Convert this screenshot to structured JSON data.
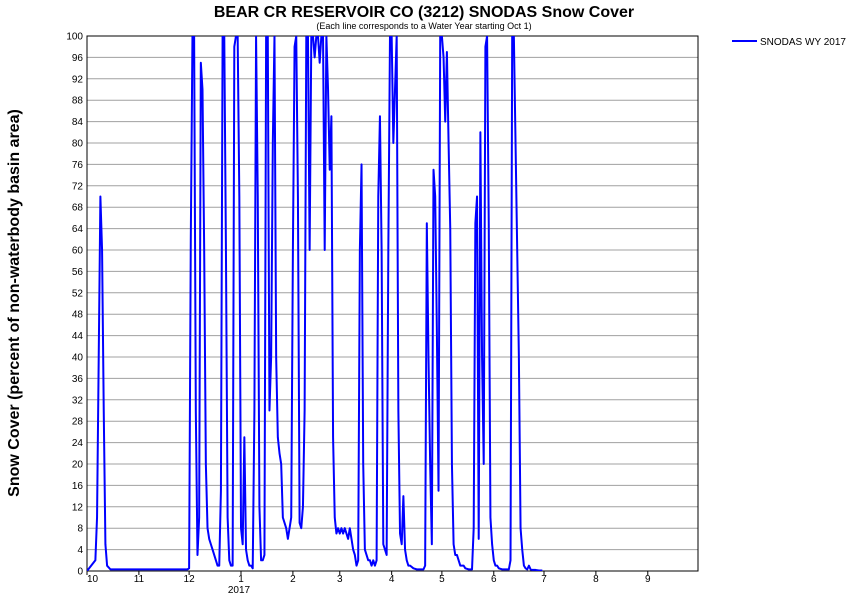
{
  "chart_data": {
    "type": "line",
    "title": "BEAR CR RESERVOIR CO (3212) SNODAS Snow Cover",
    "subtitle": "(Each line corresponds to a Water Year starting Oct 1)",
    "ylabel": "Snow Cover (percent of non-waterbody basin area)",
    "xlabel": "",
    "ylim": [
      0,
      100
    ],
    "y_ticks": [
      "0",
      "4",
      "8",
      "12",
      "16",
      "20",
      "24",
      "28",
      "32",
      "36",
      "40",
      "44",
      "48",
      "52",
      "56",
      "60",
      "64",
      "68",
      "72",
      "76",
      "80",
      "84",
      "88",
      "92",
      "96",
      "100"
    ],
    "x_ticks": [
      "10",
      "11",
      "12",
      "1",
      "2",
      "3",
      "4",
      "5",
      "6",
      "7",
      "8",
      "9"
    ],
    "x_year_label": "2017",
    "grid": true,
    "legend_position": "top-right",
    "series": [
      {
        "name": "SNODAS WY 2017",
        "color": "#0000ff",
        "x_unit": "days since Oct 1, 2016",
        "points": [
          [
            0,
            0
          ],
          [
            5,
            2
          ],
          [
            6,
            10
          ],
          [
            7,
            40
          ],
          [
            8,
            70
          ],
          [
            9,
            60
          ],
          [
            10,
            30
          ],
          [
            11,
            5
          ],
          [
            12,
            1
          ],
          [
            14,
            0.3
          ],
          [
            20,
            0.3
          ],
          [
            30,
            0.3
          ],
          [
            40,
            0.3
          ],
          [
            50,
            0.3
          ],
          [
            60,
            0.3
          ],
          [
            61,
            0.5
          ],
          [
            62,
            62
          ],
          [
            63,
            100
          ],
          [
            64,
            100
          ],
          [
            65,
            30
          ],
          [
            66,
            3
          ],
          [
            67,
            10
          ],
          [
            68,
            95
          ],
          [
            69,
            90
          ],
          [
            70,
            60
          ],
          [
            71,
            20
          ],
          [
            72,
            8
          ],
          [
            73,
            6
          ],
          [
            74,
            5
          ],
          [
            75,
            4
          ],
          [
            76,
            3
          ],
          [
            77,
            2
          ],
          [
            78,
            1
          ],
          [
            79,
            1
          ],
          [
            80,
            15
          ],
          [
            81,
            100
          ],
          [
            82,
            100
          ],
          [
            83,
            60
          ],
          [
            84,
            10
          ],
          [
            85,
            2
          ],
          [
            86,
            1
          ],
          [
            87,
            1
          ],
          [
            88,
            98
          ],
          [
            89,
            100
          ],
          [
            90,
            100
          ],
          [
            91,
            70
          ],
          [
            92,
            8
          ],
          [
            93,
            5
          ],
          [
            94,
            25
          ],
          [
            95,
            4
          ],
          [
            96,
            2
          ],
          [
            97,
            1
          ],
          [
            98,
            1
          ],
          [
            99,
            0.5
          ],
          [
            100,
            30
          ],
          [
            101,
            100
          ],
          [
            102,
            70
          ],
          [
            103,
            12
          ],
          [
            104,
            2
          ],
          [
            105,
            2
          ],
          [
            106,
            3
          ],
          [
            107,
            100
          ],
          [
            108,
            100
          ],
          [
            109,
            30
          ],
          [
            110,
            40
          ],
          [
            111,
            80
          ],
          [
            112,
            100
          ],
          [
            113,
            40
          ],
          [
            114,
            25
          ],
          [
            115,
            22
          ],
          [
            116,
            20
          ],
          [
            117,
            10
          ],
          [
            118,
            9
          ],
          [
            119,
            8
          ],
          [
            120,
            6
          ],
          [
            121,
            8
          ],
          [
            122,
            10
          ],
          [
            123,
            60
          ],
          [
            124,
            98
          ],
          [
            125,
            100
          ],
          [
            126,
            70
          ],
          [
            127,
            9
          ],
          [
            128,
            8
          ],
          [
            129,
            12
          ],
          [
            130,
            30
          ],
          [
            131,
            100
          ],
          [
            132,
            100
          ],
          [
            133,
            60
          ],
          [
            134,
            100
          ],
          [
            135,
            100
          ],
          [
            136,
            96
          ],
          [
            137,
            100
          ],
          [
            138,
            100
          ],
          [
            139,
            95
          ],
          [
            140,
            100
          ],
          [
            141,
            100
          ],
          [
            142,
            60
          ],
          [
            143,
            100
          ],
          [
            144,
            90
          ],
          [
            145,
            75
          ],
          [
            146,
            85
          ],
          [
            147,
            25
          ],
          [
            148,
            10
          ],
          [
            149,
            7
          ],
          [
            150,
            8
          ],
          [
            151,
            7
          ],
          [
            152,
            8
          ],
          [
            153,
            7
          ],
          [
            154,
            8
          ],
          [
            155,
            7
          ],
          [
            156,
            6
          ],
          [
            157,
            8
          ],
          [
            158,
            6
          ],
          [
            159,
            4
          ],
          [
            160,
            3
          ],
          [
            161,
            1
          ],
          [
            162,
            2
          ],
          [
            163,
            60
          ],
          [
            164,
            76
          ],
          [
            165,
            20
          ],
          [
            166,
            4
          ],
          [
            167,
            3
          ],
          [
            168,
            2
          ],
          [
            169,
            2
          ],
          [
            170,
            1
          ],
          [
            171,
            2
          ],
          [
            172,
            1
          ],
          [
            173,
            2
          ],
          [
            174,
            70
          ],
          [
            175,
            85
          ],
          [
            176,
            60
          ],
          [
            177,
            5
          ],
          [
            178,
            4
          ],
          [
            179,
            3
          ],
          [
            180,
            60
          ],
          [
            181,
            100
          ],
          [
            182,
            100
          ],
          [
            183,
            80
          ],
          [
            184,
            90
          ],
          [
            185,
            100
          ],
          [
            186,
            30
          ],
          [
            187,
            7
          ],
          [
            188,
            5
          ],
          [
            189,
            14
          ],
          [
            190,
            4
          ],
          [
            191,
            2
          ],
          [
            192,
            1
          ],
          [
            193,
            1
          ],
          [
            195,
            0.5
          ],
          [
            197,
            0.3
          ],
          [
            199,
            0.3
          ],
          [
            201,
            0.3
          ],
          [
            202,
            1
          ],
          [
            203,
            65
          ],
          [
            204,
            40
          ],
          [
            205,
            20
          ],
          [
            206,
            5
          ],
          [
            207,
            75
          ],
          [
            208,
            70
          ],
          [
            209,
            45
          ],
          [
            210,
            15
          ],
          [
            211,
            100
          ],
          [
            212,
            100
          ],
          [
            213,
            96
          ],
          [
            214,
            84
          ],
          [
            215,
            97
          ],
          [
            216,
            80
          ],
          [
            217,
            64
          ],
          [
            218,
            20
          ],
          [
            219,
            5
          ],
          [
            220,
            3
          ],
          [
            221,
            3
          ],
          [
            222,
            2
          ],
          [
            223,
            1
          ],
          [
            224,
            1
          ],
          [
            225,
            1
          ],
          [
            226,
            0.5
          ],
          [
            228,
            0.3
          ],
          [
            230,
            0.3
          ],
          [
            231,
            8
          ],
          [
            232,
            65
          ],
          [
            233,
            70
          ],
          [
            234,
            6
          ],
          [
            235,
            82
          ],
          [
            236,
            40
          ],
          [
            237,
            20
          ],
          [
            238,
            98
          ],
          [
            239,
            100
          ],
          [
            240,
            65
          ],
          [
            241,
            10
          ],
          [
            242,
            5
          ],
          [
            243,
            2
          ],
          [
            244,
            1
          ],
          [
            245,
            1
          ],
          [
            246,
            0.5
          ],
          [
            248,
            0.3
          ],
          [
            250,
            0.3
          ],
          [
            252,
            0.3
          ],
          [
            253,
            2
          ],
          [
            254,
            100
          ],
          [
            255,
            100
          ],
          [
            256,
            80
          ],
          [
            257,
            60
          ],
          [
            258,
            40
          ],
          [
            259,
            8
          ],
          [
            260,
            4
          ],
          [
            261,
            1
          ],
          [
            262,
            0.5
          ],
          [
            263,
            0.3
          ],
          [
            264,
            1
          ],
          [
            265,
            0.3
          ],
          [
            266,
            0.2
          ],
          [
            268,
            0.2
          ],
          [
            270,
            0.1
          ],
          [
            272,
            0.1
          ]
        ]
      }
    ]
  }
}
